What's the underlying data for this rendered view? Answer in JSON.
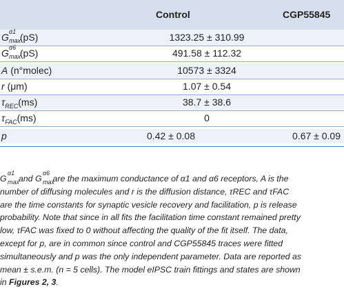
{
  "table": {
    "headers": {
      "col1": "Control",
      "col2": "CGP55845"
    },
    "rows": [
      {
        "param": "Gmax α1",
        "param_unit": "(pS)",
        "span_value": "1323.25 ± 310.99"
      },
      {
        "param": "Gmax α6",
        "param_unit": "(pS)",
        "span_value": "491.58 ± 112.32"
      },
      {
        "param": "A",
        "param_unit": "(n°molec)",
        "span_value": "10573 ± 3324"
      },
      {
        "param": "r",
        "param_unit": "(μm)",
        "span_value": "1.07 ± 0.54"
      },
      {
        "param": "τREC",
        "param_unit": "(ms)",
        "span_value": "38.7 ± 38.6"
      },
      {
        "param": "τFAC",
        "param_unit": "(ms)",
        "span_value": "0"
      },
      {
        "param": "p",
        "param_unit": "",
        "control": "0.42 ± 0.08",
        "cgp": "0.67 ± 0.09"
      }
    ]
  },
  "footnote": {
    "lines": [
      "are the maximum conductance of α1 and α6 receptors, A is the",
      "number of diffusing molecules and r is the diffusion distance, τREC and τFAC",
      "are the time constants for synaptic vesicle recovery and facilitation, p is release",
      "probability. Note that since in all fits the facilitation time constant remained pretty",
      "low, τFAC was fixed to 0 without affecting the quality of the fit itself. The data,",
      "except for p, are in common since control and CGP55845 traces were fitted",
      "simultaneously and p was the only independent parameter. Data are reported as",
      "mean ± s.e.m. (n = 5 cells). The model eIPSC train fittings and states are shown",
      "in"
    ],
    "lead": "Gmax α1 and Gmax α6",
    "figref": "Figures 2, 3",
    "tail": "."
  }
}
